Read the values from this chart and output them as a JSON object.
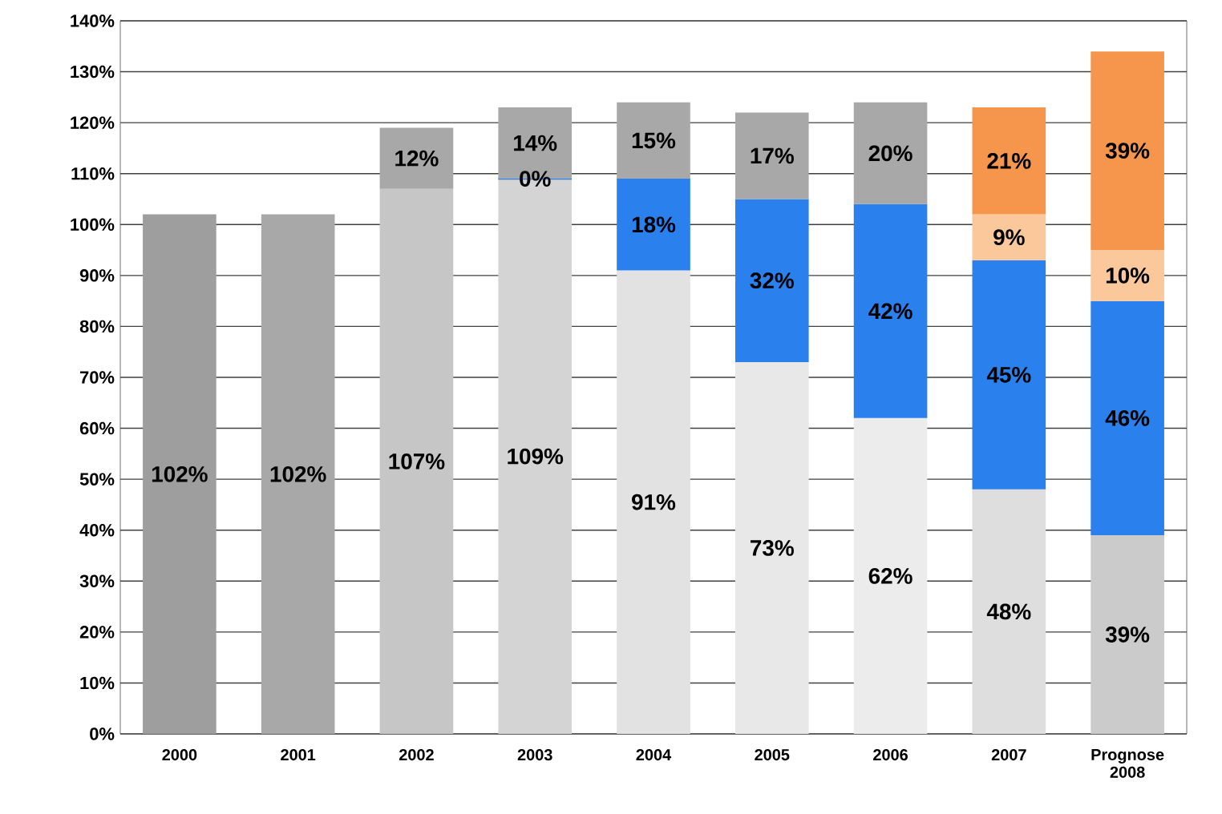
{
  "chart_data": {
    "type": "bar",
    "stacked": true,
    "categories": [
      "2000",
      "2001",
      "2002",
      "2003",
      "2004",
      "2005",
      "2006",
      "2007",
      "Prognose 2008"
    ],
    "series": [
      {
        "colors": [
          "#9e9e9e",
          "#a8a8a8",
          "#c6c6c6",
          "#d4d4d4",
          "#e2e2e2",
          "#e8e8e8",
          "#ececec",
          "#dedede",
          "#cbcbcb"
        ],
        "values": [
          102,
          102,
          107,
          109,
          91,
          73,
          62,
          48,
          39
        ],
        "value_labels": [
          "102%",
          "102%",
          "107%",
          "109%",
          "91%",
          "73%",
          "62%",
          "48%",
          "39%"
        ]
      },
      {
        "color": "#2a80ec",
        "values": [
          null,
          null,
          null,
          0,
          18,
          32,
          42,
          45,
          46
        ],
        "value_labels": [
          null,
          null,
          null,
          "0%",
          "18%",
          "32%",
          "42%",
          "45%",
          "46%"
        ]
      },
      {
        "color": "#fbc89c",
        "values": [
          null,
          null,
          null,
          null,
          null,
          null,
          null,
          9,
          10
        ],
        "value_labels": [
          null,
          null,
          null,
          null,
          null,
          null,
          null,
          "9%",
          "10%"
        ]
      },
      {
        "color": "#f5964c",
        "values": [
          null,
          null,
          null,
          null,
          null,
          null,
          null,
          21,
          39
        ],
        "value_labels": [
          null,
          null,
          null,
          null,
          null,
          null,
          null,
          "21%",
          "39%"
        ]
      },
      {
        "color": "#a8a8a8",
        "values": [
          null,
          null,
          12,
          14,
          15,
          17,
          20,
          null,
          null
        ],
        "value_labels": [
          null,
          null,
          "12%",
          "14%",
          "15%",
          "17%",
          "20%",
          null,
          null
        ]
      }
    ],
    "ylim": [
      0,
      140
    ],
    "yticks": [
      {
        "value": 0,
        "label": "0%"
      },
      {
        "value": 10,
        "label": "10%"
      },
      {
        "value": 20,
        "label": "20%"
      },
      {
        "value": 30,
        "label": "30%"
      },
      {
        "value": 40,
        "label": "40%"
      },
      {
        "value": 50,
        "label": "50%"
      },
      {
        "value": 60,
        "label": "60%"
      },
      {
        "value": 70,
        "label": "70%"
      },
      {
        "value": 80,
        "label": "80%"
      },
      {
        "value": 90,
        "label": "90%"
      },
      {
        "value": 100,
        "label": "100%"
      },
      {
        "value": 110,
        "label": "110%"
      },
      {
        "value": 120,
        "label": "120%"
      },
      {
        "value": 130,
        "label": "130%"
      },
      {
        "value": 140,
        "label": "140%"
      }
    ],
    "grid": "y"
  }
}
